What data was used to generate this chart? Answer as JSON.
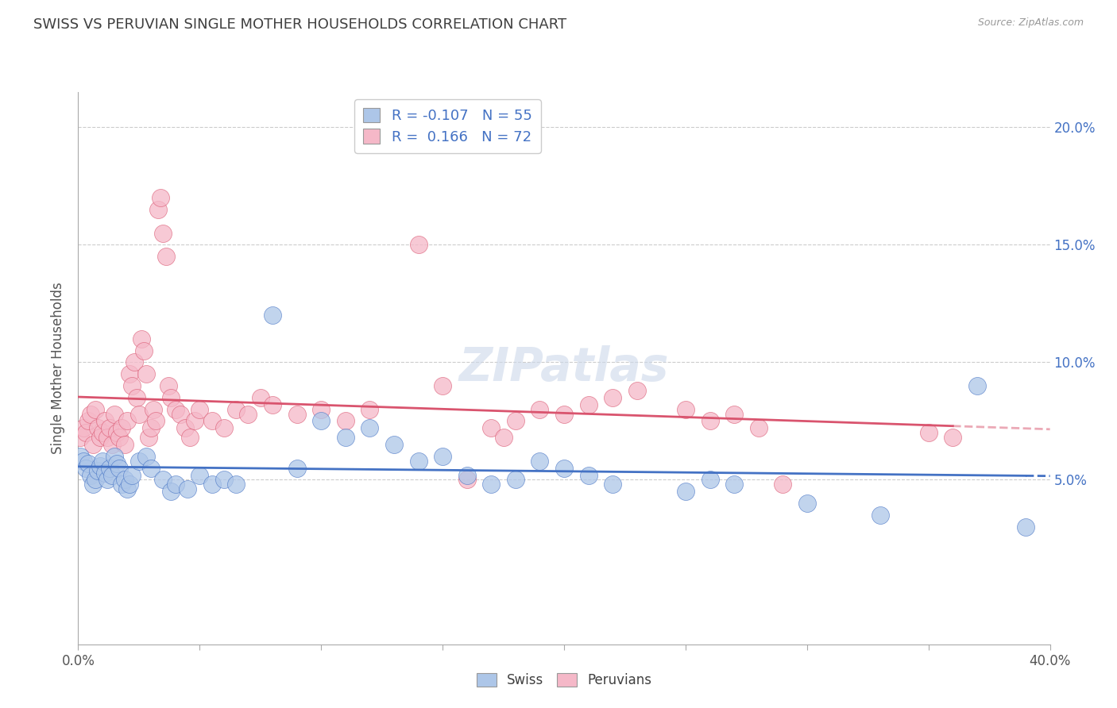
{
  "title": "SWISS VS PERUVIAN SINGLE MOTHER HOUSEHOLDS CORRELATION CHART",
  "source": "Source: ZipAtlas.com",
  "ylabel": "Single Mother Households",
  "legend_swiss": "Swiss",
  "legend_peruvians": "Peruvians",
  "r_swiss": -0.107,
  "n_swiss": 55,
  "r_peruvians": 0.166,
  "n_peruvians": 72,
  "swiss_color": "#adc6e8",
  "peruvian_color": "#f5b8c8",
  "swiss_line_color": "#4472c4",
  "peruvian_line_color": "#d9546e",
  "background_color": "#ffffff",
  "title_color": "#404040",
  "watermark_color": "#ccd8ea",
  "grid_color": "#cccccc",
  "right_axis_color": "#4472c4",
  "xlim": [
    0.0,
    0.4
  ],
  "ylim": [
    -0.02,
    0.215
  ],
  "yticks": [
    0.05,
    0.1,
    0.15,
    0.2
  ],
  "ytick_labels": [
    "5.0%",
    "10.0%",
    "15.0%",
    "20.0%"
  ],
  "swiss_scatter": [
    [
      0.001,
      0.06
    ],
    [
      0.002,
      0.058
    ],
    [
      0.003,
      0.055
    ],
    [
      0.004,
      0.057
    ],
    [
      0.005,
      0.052
    ],
    [
      0.006,
      0.048
    ],
    [
      0.007,
      0.05
    ],
    [
      0.008,
      0.054
    ],
    [
      0.009,
      0.056
    ],
    [
      0.01,
      0.058
    ],
    [
      0.011,
      0.053
    ],
    [
      0.012,
      0.05
    ],
    [
      0.013,
      0.055
    ],
    [
      0.014,
      0.052
    ],
    [
      0.015,
      0.06
    ],
    [
      0.016,
      0.057
    ],
    [
      0.017,
      0.055
    ],
    [
      0.018,
      0.048
    ],
    [
      0.019,
      0.05
    ],
    [
      0.02,
      0.046
    ],
    [
      0.021,
      0.048
    ],
    [
      0.022,
      0.052
    ],
    [
      0.025,
      0.058
    ],
    [
      0.028,
      0.06
    ],
    [
      0.03,
      0.055
    ],
    [
      0.035,
      0.05
    ],
    [
      0.038,
      0.045
    ],
    [
      0.04,
      0.048
    ],
    [
      0.045,
      0.046
    ],
    [
      0.05,
      0.052
    ],
    [
      0.055,
      0.048
    ],
    [
      0.06,
      0.05
    ],
    [
      0.065,
      0.048
    ],
    [
      0.08,
      0.12
    ],
    [
      0.09,
      0.055
    ],
    [
      0.1,
      0.075
    ],
    [
      0.11,
      0.068
    ],
    [
      0.12,
      0.072
    ],
    [
      0.13,
      0.065
    ],
    [
      0.14,
      0.058
    ],
    [
      0.15,
      0.06
    ],
    [
      0.16,
      0.052
    ],
    [
      0.17,
      0.048
    ],
    [
      0.18,
      0.05
    ],
    [
      0.19,
      0.058
    ],
    [
      0.2,
      0.055
    ],
    [
      0.21,
      0.052
    ],
    [
      0.22,
      0.048
    ],
    [
      0.25,
      0.045
    ],
    [
      0.26,
      0.05
    ],
    [
      0.27,
      0.048
    ],
    [
      0.3,
      0.04
    ],
    [
      0.33,
      0.035
    ],
    [
      0.37,
      0.09
    ],
    [
      0.39,
      0.03
    ]
  ],
  "peruvian_scatter": [
    [
      0.001,
      0.068
    ],
    [
      0.002,
      0.072
    ],
    [
      0.003,
      0.07
    ],
    [
      0.004,
      0.075
    ],
    [
      0.005,
      0.078
    ],
    [
      0.006,
      0.065
    ],
    [
      0.007,
      0.08
    ],
    [
      0.008,
      0.072
    ],
    [
      0.009,
      0.068
    ],
    [
      0.01,
      0.07
    ],
    [
      0.011,
      0.075
    ],
    [
      0.012,
      0.068
    ],
    [
      0.013,
      0.072
    ],
    [
      0.014,
      0.065
    ],
    [
      0.015,
      0.078
    ],
    [
      0.016,
      0.07
    ],
    [
      0.017,
      0.068
    ],
    [
      0.018,
      0.072
    ],
    [
      0.019,
      0.065
    ],
    [
      0.02,
      0.075
    ],
    [
      0.021,
      0.095
    ],
    [
      0.022,
      0.09
    ],
    [
      0.023,
      0.1
    ],
    [
      0.024,
      0.085
    ],
    [
      0.025,
      0.078
    ],
    [
      0.026,
      0.11
    ],
    [
      0.027,
      0.105
    ],
    [
      0.028,
      0.095
    ],
    [
      0.029,
      0.068
    ],
    [
      0.03,
      0.072
    ],
    [
      0.031,
      0.08
    ],
    [
      0.032,
      0.075
    ],
    [
      0.033,
      0.165
    ],
    [
      0.034,
      0.17
    ],
    [
      0.035,
      0.155
    ],
    [
      0.036,
      0.145
    ],
    [
      0.037,
      0.09
    ],
    [
      0.038,
      0.085
    ],
    [
      0.04,
      0.08
    ],
    [
      0.042,
      0.078
    ],
    [
      0.044,
      0.072
    ],
    [
      0.046,
      0.068
    ],
    [
      0.048,
      0.075
    ],
    [
      0.05,
      0.08
    ],
    [
      0.055,
      0.075
    ],
    [
      0.06,
      0.072
    ],
    [
      0.065,
      0.08
    ],
    [
      0.07,
      0.078
    ],
    [
      0.075,
      0.085
    ],
    [
      0.08,
      0.082
    ],
    [
      0.09,
      0.078
    ],
    [
      0.1,
      0.08
    ],
    [
      0.11,
      0.075
    ],
    [
      0.12,
      0.08
    ],
    [
      0.14,
      0.15
    ],
    [
      0.15,
      0.09
    ],
    [
      0.16,
      0.05
    ],
    [
      0.17,
      0.072
    ],
    [
      0.175,
      0.068
    ],
    [
      0.18,
      0.075
    ],
    [
      0.19,
      0.08
    ],
    [
      0.2,
      0.078
    ],
    [
      0.21,
      0.082
    ],
    [
      0.22,
      0.085
    ],
    [
      0.23,
      0.088
    ],
    [
      0.25,
      0.08
    ],
    [
      0.26,
      0.075
    ],
    [
      0.27,
      0.078
    ],
    [
      0.28,
      0.072
    ],
    [
      0.29,
      0.048
    ],
    [
      0.35,
      0.07
    ],
    [
      0.36,
      0.068
    ]
  ]
}
